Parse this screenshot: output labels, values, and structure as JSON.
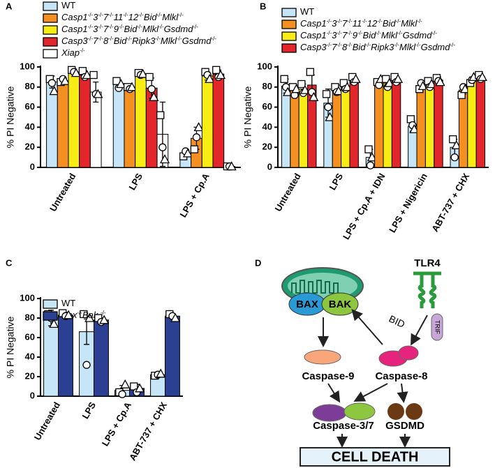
{
  "chart_data": [
    {
      "type": "bar",
      "panel": "A",
      "ylabel": "% PI Negative",
      "categories": [
        "Untreated",
        "LPS",
        "LPS + Cp.A"
      ],
      "ylim": [
        0,
        100
      ],
      "yticks": [
        0,
        20,
        40,
        60,
        80,
        100
      ],
      "series": [
        {
          "name": "WT",
          "color": "#c6e6f7",
          "values": [
            85,
            83,
            14
          ],
          "errors": [
            6,
            4,
            3
          ],
          "points": [
            [
              88,
              84,
              76
            ],
            [
              86,
              79,
              83
            ],
            [
              11,
              16,
              14
            ]
          ]
        },
        {
          "name": "Casp1-/-3-/-7-/-11-/-12-/-Bid-/-Mlkl-/-",
          "color": "#f39021",
          "values": [
            86,
            79,
            29
          ],
          "errors": [
            2,
            1,
            11
          ],
          "points": [
            [
              85,
              88,
              86
            ],
            [
              80,
              78,
              80
            ],
            [
              18,
              30,
              40
            ]
          ]
        },
        {
          "name": "Casp1-/-3-/-7-/-9-/-Bid-/-Mlkl-/-Gsdmd-/-",
          "color": "#f7ec13",
          "values": [
            95,
            93,
            91
          ],
          "errors": [
            2,
            1,
            4
          ],
          "points": [
            [
              97,
              95,
              94
            ],
            [
              94,
              92,
              93
            ],
            [
              95,
              92,
              88
            ]
          ]
        },
        {
          "name": "Casp3-/-7-/-8-/-Bid-/-Ripk3-/-Mlkl-/-Gsdmd-/-",
          "color": "#e3262b",
          "values": [
            92,
            79,
            93
          ],
          "errors": [
            3,
            10,
            4
          ],
          "points": [
            [
              96,
              90,
              92
            ],
            [
              90,
              78,
              70
            ],
            [
              97,
              90,
              92
            ]
          ]
        },
        {
          "name": "Xiap-/-",
          "color": "#ffffff",
          "values": [
            75,
            33,
            1
          ],
          "errors": [
            10,
            32,
            0.5
          ],
          "points": [
            [
              92,
              73,
              73
            ],
            [
              52,
              20,
              8
            ],
            [
              1,
              1,
              1
            ]
          ]
        }
      ]
    },
    {
      "type": "bar",
      "panel": "B",
      "ylabel": "% PI Negative",
      "categories": [
        "Untreated",
        "LPS",
        "LPS + Cp.A + IDN",
        "LPS + Nigericin",
        "ABT-737 + CHX"
      ],
      "ylim": [
        0,
        100
      ],
      "yticks": [
        0,
        20,
        40,
        60,
        80,
        100
      ],
      "series": [
        {
          "name": "WT",
          "color": "#c6e6f7",
          "values": [
            81,
            64,
            10,
            41,
            20
          ],
          "errors": [
            7,
            14,
            8,
            5,
            8
          ],
          "points": [
            [
              88,
              80,
              75
            ],
            [
              73,
              60,
              50
            ],
            [
              18,
              2,
              10
            ],
            [
              48,
              42,
              38
            ],
            [
              28,
              10,
              22
            ]
          ]
        },
        {
          "name": "Casp1-/-3-/-7-/-11-/-12-/-Bid-/-Mlkl-/-",
          "color": "#f39021",
          "values": [
            77,
            77,
            85,
            81,
            77
          ],
          "errors": [
            5,
            5,
            3,
            3,
            4
          ],
          "points": [
            [
              80,
              72,
              78
            ],
            [
              80,
              75,
              76
            ],
            [
              85,
              82,
              88
            ],
            [
              78,
              84,
              81
            ],
            [
              72,
              80,
              78
            ]
          ]
        },
        {
          "name": "Casp1-/-3-/-7-/-9-/-Bid-/-Mlkl-/-Gsdmd-/-",
          "color": "#f7ec13",
          "values": [
            78,
            80,
            84,
            83,
            87
          ],
          "errors": [
            5,
            4,
            4,
            3,
            3
          ],
          "points": [
            [
              83,
              74,
              77
            ],
            [
              84,
              78,
              80
            ],
            [
              88,
              80,
              84
            ],
            [
              86,
              80,
              83
            ],
            [
              84,
              87,
              90
            ]
          ]
        },
        {
          "name": "Casp3-/-7-/-8-/-Bid-/-Ripk3-/-Mlkl-/-Gsdmd-/-",
          "color": "#e3262b",
          "values": [
            82,
            87,
            88,
            87,
            90
          ],
          "errors": [
            10,
            3,
            3,
            3,
            3
          ],
          "points": [
            [
              95,
              75,
              70
            ],
            [
              90,
              85,
              88
            ],
            [
              90,
              85,
              88
            ],
            [
              89,
              86,
              85
            ],
            [
              92,
              88,
              90
            ]
          ]
        }
      ]
    },
    {
      "type": "bar",
      "panel": "C",
      "ylabel": "% PI Negative",
      "categories": [
        "Untreated",
        "LPS",
        "LPS + Cp.A",
        "ABT-737 + CHX"
      ],
      "ylim": [
        0,
        100
      ],
      "yticks": [
        0,
        20,
        40,
        60,
        80,
        100
      ],
      "series": [
        {
          "name": "WT",
          "color": "#c6e6f7",
          "values": [
            80,
            66,
            6,
            22
          ],
          "errors": [
            8,
            13,
            5,
            2
          ],
          "points": [
            [
              84,
              80,
              74
            ],
            [
              84,
              32,
              80
            ],
            [
              4,
              2,
              12
            ],
            [
              21,
              22,
              23
            ]
          ]
        },
        {
          "name": "Bax-/-Bak -/-",
          "color": "#2b3f93",
          "values": [
            83,
            78,
            8,
            82
          ],
          "errors": [
            3,
            2,
            4,
            2
          ],
          "points": [
            [
              85,
              82,
              83
            ],
            [
              80,
              76,
              78
            ],
            [
              10,
              4,
              8
            ],
            [
              84,
              82,
              80
            ]
          ]
        }
      ]
    }
  ],
  "diagram": {
    "panel": "D",
    "labels": {
      "tlr4": "TLR4",
      "trif": "TRIF",
      "bax": "BAX",
      "bak": "BAK",
      "bid": "BID",
      "caspase9": "Caspase-9",
      "caspase8": "Caspase-8",
      "caspase37": "Caspase-3/7",
      "gsdmd": "GSDMD",
      "celldeath": "CELL DEATH"
    }
  }
}
